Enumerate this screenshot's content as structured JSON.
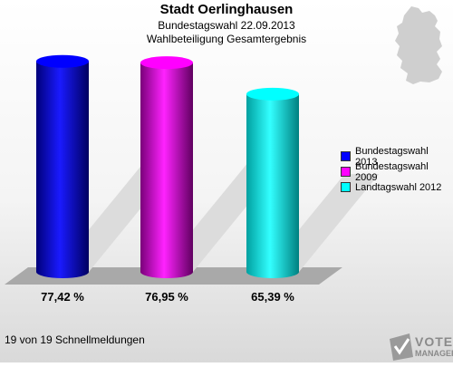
{
  "header": {
    "title": "Stadt Oerlinghausen",
    "subtitle": "Bundestagswahl 22.09.2013",
    "subtitle2": "Wahlbeteiligung Gesamtergebnis"
  },
  "chart_data": {
    "type": "bar",
    "categories": [
      "Bundestagswahl 2013",
      "Bundestagswahl 2009",
      "Landtagswahl 2012"
    ],
    "values": [
      77.42,
      76.95,
      65.39
    ],
    "value_labels": [
      "77,42 %",
      "76,95 %",
      "65,39 %"
    ],
    "colors": [
      "#0000ff",
      "#ff00ff",
      "#00ffff"
    ],
    "ylim": [
      0,
      100
    ],
    "legend_position": "right"
  },
  "legend": {
    "items": [
      {
        "label": "Bundestagswahl 2013",
        "color": "#0000ff"
      },
      {
        "label": "Bundestagswahl 2009",
        "color": "#ff00ff"
      },
      {
        "label": "Landtagswahl 2012",
        "color": "#00ffff"
      }
    ]
  },
  "footer": {
    "status": "19 von 19 Schnellmeldungen"
  },
  "logo": {
    "line1": "VOTE",
    "line2": "MANAGER"
  },
  "icons": {
    "map": "germany-map-icon",
    "logo": "vote-manager-logo-icon"
  }
}
